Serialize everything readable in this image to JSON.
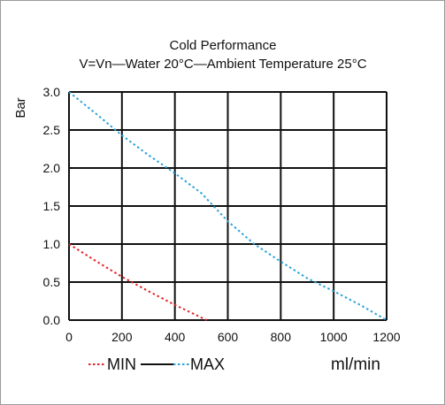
{
  "chart_data": {
    "type": "line",
    "title": "Cold Performance",
    "subtitle": "V=Vn—Water 20°C—Ambient Temperature 25°C",
    "ylabel": "Bar",
    "xlabel": "ml/min",
    "xlim": [
      0,
      1200
    ],
    "ylim": [
      0,
      3.0
    ],
    "x_ticks": [
      0,
      200,
      400,
      600,
      800,
      1000,
      1200
    ],
    "x_tick_labels": [
      "0",
      "200",
      "400",
      "600",
      "800",
      "1000",
      "1200"
    ],
    "y_ticks": [
      0,
      0.5,
      1.0,
      1.5,
      2.0,
      2.5,
      3.0
    ],
    "y_tick_labels": [
      "0.0",
      "0.5",
      "1.0",
      "1.5",
      "2.0",
      "2.5",
      "3.0"
    ],
    "grid": true,
    "legend_position": "bottom-left",
    "legend_separator": "—",
    "series": [
      {
        "name": "MIN",
        "color": "#e0262b",
        "style": "dotted",
        "x": [
          0,
          100,
          200,
          300,
          400,
          520
        ],
        "y": [
          1.0,
          0.78,
          0.57,
          0.38,
          0.2,
          0.0
        ]
      },
      {
        "name": "MAX",
        "color": "#2aa3d8",
        "style": "dotted",
        "x": [
          0,
          100,
          200,
          300,
          400,
          500,
          600,
          700,
          800,
          900,
          1000,
          1100,
          1200
        ],
        "y": [
          3.0,
          2.72,
          2.43,
          2.17,
          1.93,
          1.67,
          1.3,
          1.0,
          0.77,
          0.55,
          0.38,
          0.2,
          0.0
        ]
      }
    ]
  }
}
